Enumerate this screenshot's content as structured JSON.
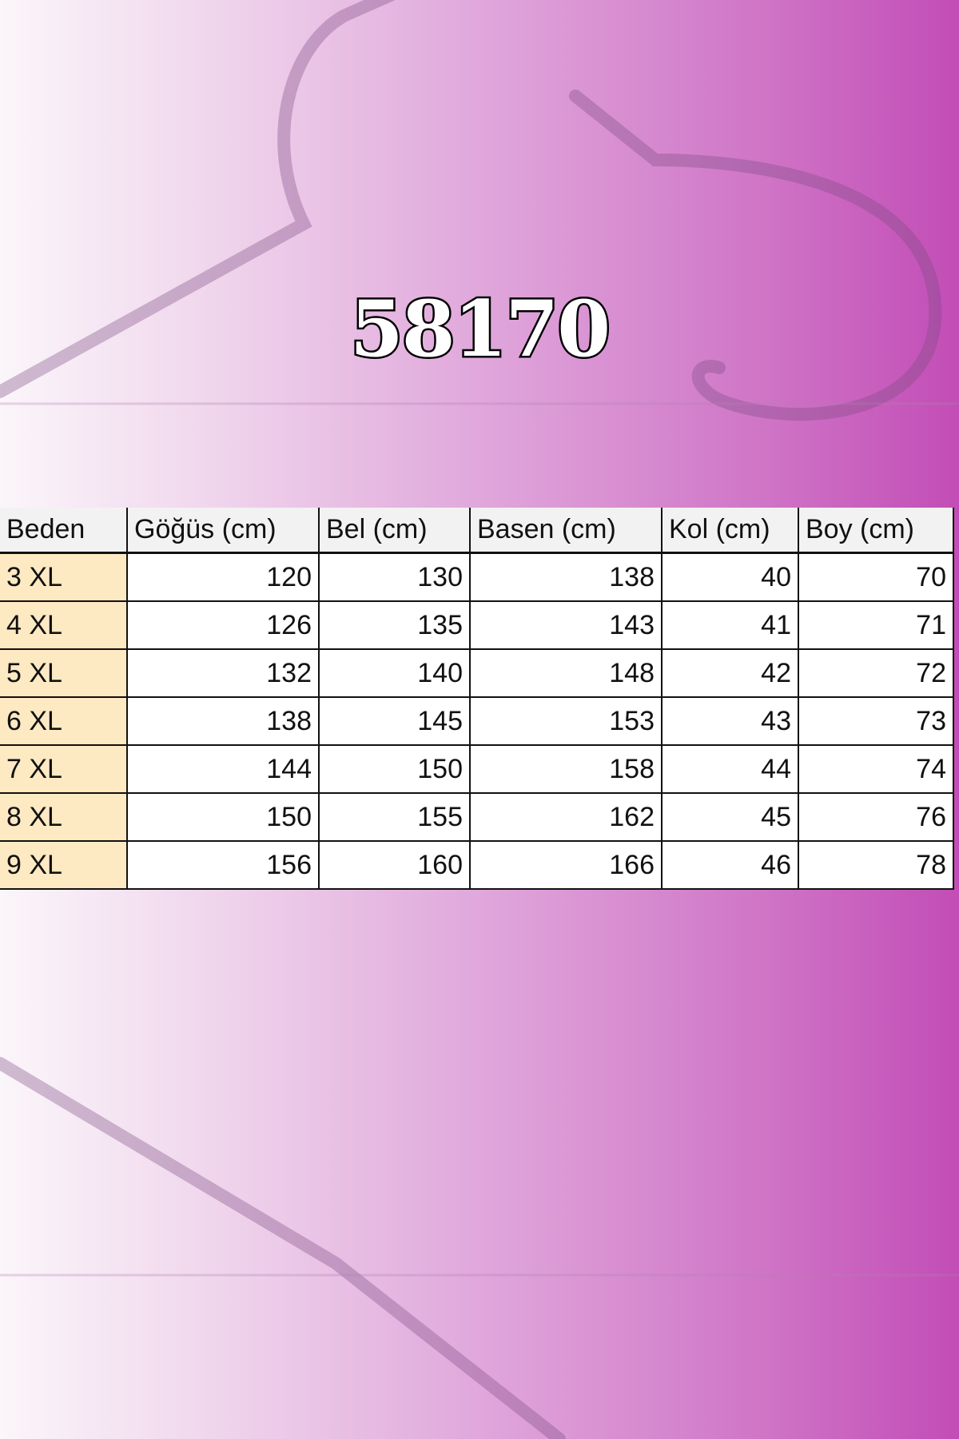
{
  "title": "58170",
  "table": {
    "headers": [
      "Beden",
      "Göğüs (cm)",
      "Bel (cm)",
      "Basen (cm)",
      "Kol (cm)",
      "Boy (cm)"
    ],
    "rows": [
      [
        "3 XL",
        "120",
        "130",
        "138",
        "40",
        "70"
      ],
      [
        "4 XL",
        "126",
        "135",
        "143",
        "41",
        "71"
      ],
      [
        "5 XL",
        "132",
        "140",
        "148",
        "42",
        "72"
      ],
      [
        "6 XL",
        "138",
        "145",
        "153",
        "43",
        "73"
      ],
      [
        "7 XL",
        "144",
        "150",
        "158",
        "44",
        "74"
      ],
      [
        "8 XL",
        "150",
        "155",
        "162",
        "45",
        "76"
      ],
      [
        "9 XL",
        "156",
        "160",
        "166",
        "46",
        "78"
      ]
    ]
  }
}
